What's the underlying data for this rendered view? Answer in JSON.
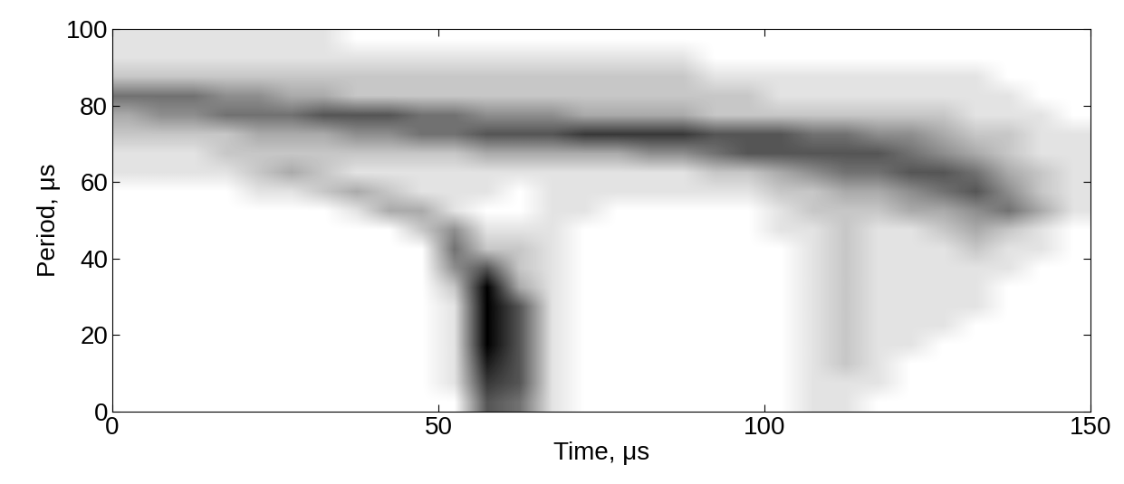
{
  "chart_data": {
    "type": "heatmap",
    "x_label": "Time, μs",
    "y_label": "Period, μs",
    "xlim": [
      0,
      150
    ],
    "ylim": [
      0,
      100
    ],
    "xticks": [
      0,
      50,
      100,
      150
    ],
    "yticks": [
      0,
      20,
      40,
      60,
      80,
      100
    ],
    "color": "#000000",
    "grid": false,
    "value_range": [
      0,
      9
    ],
    "cells": [
      [
        0,
        0,
        0,
        0,
        0,
        0,
        0,
        0,
        0,
        0,
        0,
        6,
        5,
        1,
        0,
        0,
        0,
        0,
        0,
        0,
        0,
        1,
        1,
        0,
        0,
        0,
        0,
        0,
        0,
        0
      ],
      [
        0,
        0,
        0,
        0,
        0,
        0,
        0,
        0,
        0,
        0,
        1,
        7,
        6,
        1,
        0,
        0,
        0,
        0,
        0,
        0,
        0,
        1,
        1,
        1,
        0,
        0,
        0,
        0,
        0,
        0
      ],
      [
        0,
        0,
        0,
        0,
        0,
        0,
        0,
        0,
        0,
        0,
        1,
        8,
        6,
        1,
        0,
        0,
        0,
        0,
        0,
        0,
        0,
        1,
        2,
        1,
        0,
        0,
        0,
        0,
        0,
        0
      ],
      [
        0,
        0,
        0,
        0,
        0,
        0,
        0,
        0,
        0,
        0,
        1,
        9,
        6,
        1,
        0,
        0,
        0,
        0,
        0,
        0,
        0,
        1,
        2,
        1,
        1,
        0,
        0,
        0,
        0,
        0
      ],
      [
        0,
        0,
        0,
        0,
        0,
        0,
        0,
        0,
        0,
        0,
        1,
        9,
        6,
        1,
        0,
        0,
        0,
        0,
        0,
        0,
        0,
        1,
        2,
        1,
        1,
        1,
        0,
        0,
        0,
        0
      ],
      [
        0,
        0,
        0,
        0,
        0,
        0,
        0,
        0,
        0,
        0,
        1,
        9,
        6,
        1,
        0,
        0,
        0,
        0,
        0,
        0,
        0,
        1,
        2,
        1,
        1,
        1,
        1,
        0,
        0,
        0
      ],
      [
        0,
        0,
        0,
        0,
        0,
        0,
        0,
        0,
        0,
        0,
        2,
        9,
        3,
        1,
        0,
        0,
        0,
        0,
        0,
        0,
        0,
        1,
        2,
        1,
        1,
        1,
        1,
        0,
        0,
        0
      ],
      [
        0,
        0,
        0,
        0,
        0,
        0,
        0,
        0,
        0,
        0,
        4,
        6,
        2,
        1,
        0,
        0,
        0,
        0,
        0,
        0,
        0,
        1,
        2,
        1,
        1,
        1,
        1,
        1,
        0,
        0
      ],
      [
        0,
        0,
        0,
        0,
        0,
        0,
        0,
        0,
        0,
        0,
        5,
        2,
        2,
        1,
        0,
        0,
        0,
        0,
        0,
        0,
        0,
        1,
        2,
        1,
        1,
        1,
        2,
        1,
        1,
        0
      ],
      [
        0,
        0,
        0,
        0,
        0,
        0,
        0,
        0,
        0,
        2,
        4,
        1,
        1,
        1,
        0,
        0,
        0,
        0,
        0,
        0,
        1,
        1,
        2,
        1,
        1,
        2,
        3,
        2,
        1,
        0
      ],
      [
        0,
        0,
        0,
        0,
        0,
        0,
        0,
        1,
        3,
        3,
        1,
        0,
        0,
        1,
        1,
        0,
        0,
        0,
        0,
        0,
        1,
        2,
        2,
        2,
        3,
        3,
        4,
        5,
        3,
        1
      ],
      [
        0,
        0,
        0,
        0,
        1,
        1,
        2,
        3,
        2,
        1,
        1,
        1,
        0,
        1,
        1,
        1,
        1,
        1,
        1,
        1,
        2,
        2,
        3,
        3,
        4,
        5,
        6,
        4,
        2,
        1
      ],
      [
        1,
        1,
        1,
        1,
        2,
        3,
        2,
        1,
        1,
        1,
        1,
        1,
        1,
        1,
        1,
        1,
        1,
        1,
        2,
        2,
        3,
        4,
        5,
        5,
        6,
        6,
        5,
        3,
        2,
        1
      ],
      [
        1,
        1,
        1,
        2,
        2,
        2,
        2,
        2,
        2,
        2,
        2,
        3,
        3,
        3,
        3,
        3,
        4,
        4,
        5,
        6,
        6,
        6,
        6,
        6,
        5,
        4,
        3,
        2,
        1,
        1
      ],
      [
        2,
        2,
        2,
        2,
        3,
        3,
        3,
        4,
        4,
        5,
        5,
        6,
        6,
        6,
        7,
        7,
        7,
        7,
        6,
        6,
        6,
        5,
        5,
        4,
        4,
        3,
        2,
        2,
        1,
        1
      ],
      [
        3,
        4,
        4,
        5,
        5,
        5,
        6,
        6,
        6,
        5,
        5,
        4,
        4,
        4,
        3,
        3,
        3,
        3,
        2,
        2,
        2,
        2,
        2,
        2,
        2,
        2,
        1,
        1,
        1,
        0
      ],
      [
        5,
        5,
        5,
        4,
        4,
        3,
        3,
        2,
        2,
        2,
        2,
        2,
        2,
        2,
        2,
        2,
        2,
        2,
        2,
        2,
        1,
        1,
        1,
        1,
        1,
        1,
        1,
        1,
        0,
        0
      ],
      [
        2,
        2,
        2,
        2,
        2,
        2,
        2,
        2,
        2,
        2,
        2,
        2,
        2,
        2,
        2,
        2,
        2,
        2,
        1,
        1,
        1,
        1,
        1,
        1,
        1,
        1,
        1,
        0,
        0,
        0
      ],
      [
        1,
        1,
        1,
        1,
        1,
        1,
        1,
        1,
        1,
        1,
        1,
        1,
        1,
        1,
        1,
        1,
        1,
        1,
        0,
        0,
        0,
        0,
        0,
        0,
        0,
        0,
        0,
        0,
        0,
        0
      ],
      [
        1,
        1,
        1,
        1,
        1,
        1,
        1,
        0,
        0,
        0,
        0,
        0,
        0,
        0,
        0,
        0,
        0,
        0,
        0,
        0,
        0,
        0,
        0,
        0,
        0,
        0,
        0,
        0,
        0,
        0
      ]
    ]
  }
}
